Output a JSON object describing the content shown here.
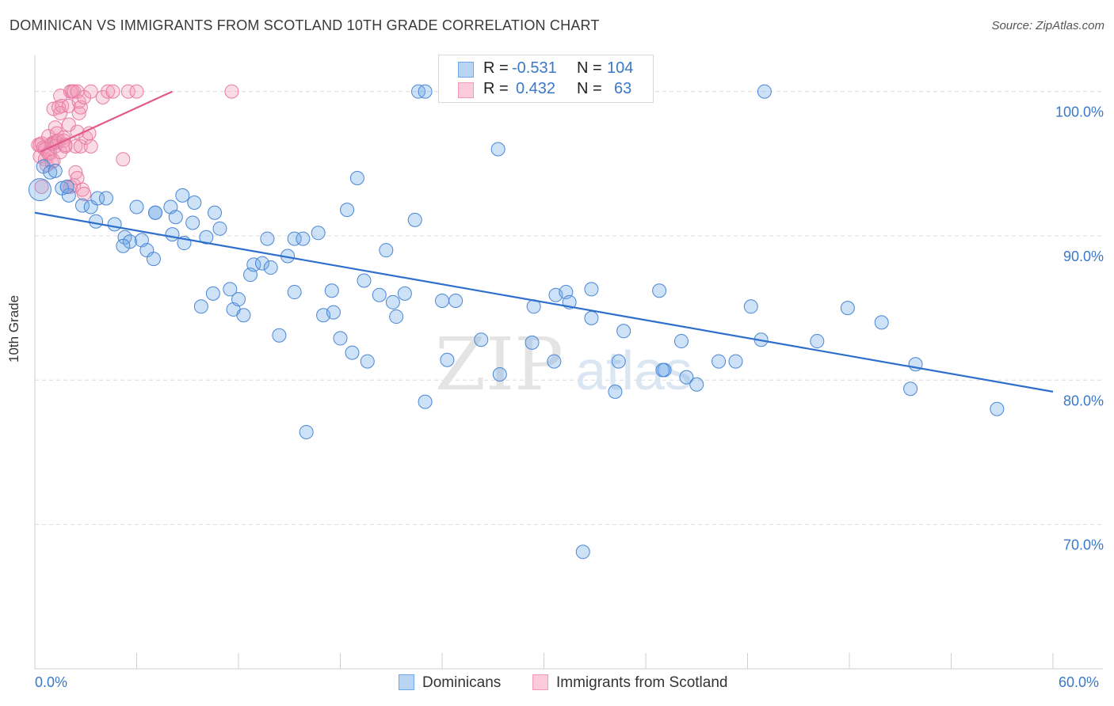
{
  "title": "DOMINICAN VS IMMIGRANTS FROM SCOTLAND 10TH GRADE CORRELATION CHART",
  "source": "Source: ZipAtlas.com",
  "watermark": {
    "zip": "ZIP",
    "atlas": "atlas"
  },
  "legend": {
    "rows": [
      {
        "r_label": "R =",
        "r_value": "-0.531",
        "n_label": "N =",
        "n_value": "104",
        "color": "#6fa8e8"
      },
      {
        "r_label": "R =",
        "r_value": "0.432",
        "n_label": "N =",
        "n_value": "63",
        "color": "#f29ab8"
      }
    ]
  },
  "bottom_legend": {
    "series1": "Dominicans",
    "series2": "Immigrants from Scotland"
  },
  "chart_data": {
    "type": "scatter",
    "title": "DOMINICAN VS IMMIGRANTS FROM SCOTLAND 10TH GRADE CORRELATION CHART",
    "xlabel": "",
    "ylabel": "10th Grade",
    "xlim": [
      0,
      60
    ],
    "ylim": [
      60,
      102.5
    ],
    "x_tick_labels": [
      "0.0%",
      "60.0%"
    ],
    "y_ticks": [
      100,
      90,
      80,
      70
    ],
    "y_tick_labels": [
      "100.0%",
      "90.0%",
      "80.0%",
      "70.0%"
    ],
    "grid": "horizontal dashed",
    "series": [
      {
        "name": "Dominicans",
        "color": "#6fa8e8",
        "stroke": "#4a86d4",
        "trend": {
          "x1": 0,
          "y1": 91.6,
          "x2": 60,
          "y2": 79.2,
          "color": "#2e6fcc"
        },
        "points": [
          [
            0.3,
            93.2
          ],
          [
            0.5,
            94.8
          ],
          [
            0.9,
            94.4
          ],
          [
            1.2,
            94.5
          ],
          [
            1.6,
            93.3
          ],
          [
            2.0,
            92.8
          ],
          [
            1.9,
            93.4
          ],
          [
            2.8,
            92.1
          ],
          [
            3.3,
            92.0
          ],
          [
            3.7,
            92.6
          ],
          [
            4.2,
            92.6
          ],
          [
            3.6,
            91.0
          ],
          [
            4.7,
            90.8
          ],
          [
            5.3,
            89.9
          ],
          [
            5.6,
            89.6
          ],
          [
            5.2,
            89.3
          ],
          [
            6.0,
            92.0
          ],
          [
            6.3,
            89.7
          ],
          [
            6.6,
            89.0
          ],
          [
            7.1,
            91.6
          ],
          [
            7.1,
            91.6
          ],
          [
            7.0,
            88.4
          ],
          [
            8.0,
            92.0
          ],
          [
            8.7,
            92.8
          ],
          [
            8.3,
            91.3
          ],
          [
            8.1,
            90.1
          ],
          [
            8.8,
            89.5
          ],
          [
            9.4,
            92.3
          ],
          [
            9.3,
            90.9
          ],
          [
            10.1,
            89.9
          ],
          [
            10.6,
            91.6
          ],
          [
            10.9,
            90.5
          ],
          [
            9.8,
            85.1
          ],
          [
            10.5,
            86.0
          ],
          [
            11.5,
            86.3
          ],
          [
            11.7,
            84.9
          ],
          [
            12.0,
            85.6
          ],
          [
            12.3,
            84.5
          ],
          [
            12.7,
            87.3
          ],
          [
            12.9,
            88.0
          ],
          [
            13.4,
            88.1
          ],
          [
            13.9,
            87.8
          ],
          [
            13.7,
            89.8
          ],
          [
            14.4,
            83.1
          ],
          [
            14.9,
            88.6
          ],
          [
            15.3,
            86.1
          ],
          [
            15.3,
            89.8
          ],
          [
            15.8,
            89.8
          ],
          [
            16.7,
            90.2
          ],
          [
            16.0,
            76.4
          ],
          [
            17.0,
            84.5
          ],
          [
            17.5,
            86.2
          ],
          [
            17.6,
            84.7
          ],
          [
            18.0,
            82.9
          ],
          [
            18.4,
            91.8
          ],
          [
            18.7,
            81.9
          ],
          [
            19.0,
            94.0
          ],
          [
            19.4,
            86.9
          ],
          [
            19.6,
            81.3
          ],
          [
            20.3,
            85.9
          ],
          [
            20.7,
            89.0
          ],
          [
            21.1,
            85.4
          ],
          [
            21.3,
            84.4
          ],
          [
            21.8,
            86.0
          ],
          [
            22.4,
            91.1
          ],
          [
            22.6,
            100.0
          ],
          [
            23.0,
            100.0
          ],
          [
            23.0,
            78.5
          ],
          [
            24.0,
            85.5
          ],
          [
            24.3,
            81.4
          ],
          [
            24.8,
            85.5
          ],
          [
            26.3,
            82.8
          ],
          [
            27.4,
            80.4
          ],
          [
            27.3,
            96.0
          ],
          [
            29.3,
            82.6
          ],
          [
            29.4,
            85.1
          ],
          [
            30.6,
            81.3
          ],
          [
            30.7,
            85.9
          ],
          [
            31.3,
            86.1
          ],
          [
            31.5,
            85.4
          ],
          [
            32.3,
            68.1
          ],
          [
            32.8,
            84.3
          ],
          [
            32.8,
            86.3
          ],
          [
            34.2,
            79.2
          ],
          [
            34.4,
            81.3
          ],
          [
            34.7,
            83.4
          ],
          [
            36.8,
            86.2
          ],
          [
            37.1,
            80.7
          ],
          [
            37.0,
            80.7
          ],
          [
            38.1,
            82.7
          ],
          [
            38.4,
            80.2
          ],
          [
            39.0,
            79.7
          ],
          [
            40.3,
            81.3
          ],
          [
            41.3,
            81.3
          ],
          [
            43.0,
            100.0
          ],
          [
            42.2,
            85.1
          ],
          [
            42.8,
            82.8
          ],
          [
            46.1,
            82.7
          ],
          [
            47.9,
            85.0
          ],
          [
            49.9,
            84.0
          ],
          [
            51.6,
            79.4
          ],
          [
            51.9,
            81.1
          ],
          [
            56.7,
            78.0
          ]
        ]
      },
      {
        "name": "Immigrants from Scotland",
        "color": "#f29ab8",
        "stroke": "#e87aa3",
        "trend": {
          "x1": 0.3,
          "y1": 95.8,
          "x2": 8.1,
          "y2": 100.0,
          "color": "#e05a8a"
        },
        "points": [
          [
            0.2,
            96.3
          ],
          [
            0.3,
            96.3
          ],
          [
            0.3,
            95.5
          ],
          [
            0.4,
            93.4
          ],
          [
            0.4,
            96.4
          ],
          [
            0.5,
            96.1
          ],
          [
            0.6,
            96.0
          ],
          [
            0.6,
            95.3
          ],
          [
            0.7,
            94.9
          ],
          [
            0.8,
            96.9
          ],
          [
            0.8,
            95.7
          ],
          [
            0.9,
            95.7
          ],
          [
            1.0,
            96.4
          ],
          [
            1.0,
            95.1
          ],
          [
            1.1,
            98.8
          ],
          [
            1.1,
            96.4
          ],
          [
            1.1,
            95.2
          ],
          [
            1.2,
            96.5
          ],
          [
            1.2,
            96.2
          ],
          [
            1.2,
            97.5
          ],
          [
            1.3,
            96.5
          ],
          [
            1.3,
            97.1
          ],
          [
            1.4,
            98.9
          ],
          [
            1.4,
            96.6
          ],
          [
            1.5,
            95.8
          ],
          [
            1.5,
            99.7
          ],
          [
            1.5,
            98.5
          ],
          [
            1.6,
            99.0
          ],
          [
            1.7,
            96.6
          ],
          [
            1.7,
            96.8
          ],
          [
            1.8,
            96.2
          ],
          [
            1.8,
            96.3
          ],
          [
            1.9,
            93.4
          ],
          [
            2.0,
            97.7
          ],
          [
            2.0,
            99.0
          ],
          [
            2.1,
            100.0
          ],
          [
            2.1,
            93.4
          ],
          [
            2.2,
            100.0
          ],
          [
            2.3,
            100.0
          ],
          [
            2.3,
            93.5
          ],
          [
            2.4,
            94.4
          ],
          [
            2.4,
            96.2
          ],
          [
            2.5,
            100.0
          ],
          [
            2.5,
            97.2
          ],
          [
            2.5,
            94.0
          ],
          [
            2.6,
            98.5
          ],
          [
            2.6,
            99.3
          ],
          [
            2.7,
            98.9
          ],
          [
            2.7,
            96.2
          ],
          [
            2.8,
            93.2
          ],
          [
            2.9,
            92.9
          ],
          [
            2.9,
            99.6
          ],
          [
            3.0,
            96.8
          ],
          [
            3.2,
            97.1
          ],
          [
            3.3,
            100.0
          ],
          [
            3.3,
            96.2
          ],
          [
            4.0,
            99.6
          ],
          [
            4.3,
            100.0
          ],
          [
            4.6,
            100.0
          ],
          [
            5.2,
            95.3
          ],
          [
            5.5,
            100.0
          ],
          [
            6.0,
            100.0
          ],
          [
            11.6,
            100.0
          ]
        ]
      }
    ]
  }
}
